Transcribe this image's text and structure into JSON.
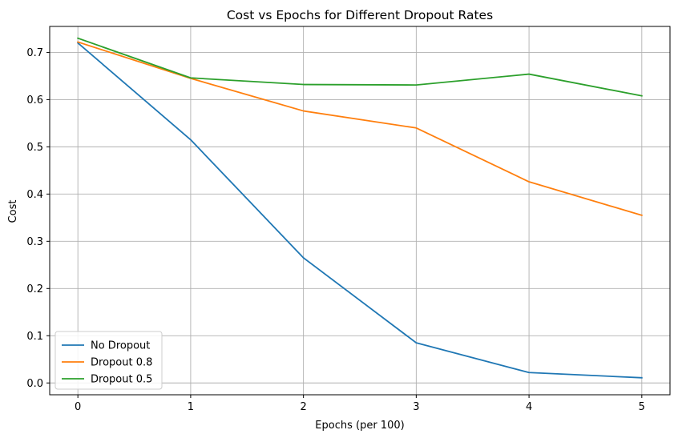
{
  "chart_data": {
    "type": "line",
    "title": "Cost vs Epochs for Different Dropout Rates",
    "xlabel": "Epochs (per 100)",
    "ylabel": "Cost",
    "x": [
      0,
      1,
      2,
      3,
      4,
      5
    ],
    "xlim": [
      -0.25,
      5.25
    ],
    "ylim": [
      -0.025,
      0.755
    ],
    "x_ticks": [
      0,
      1,
      2,
      3,
      4,
      5
    ],
    "y_ticks": [
      0.0,
      0.1,
      0.2,
      0.3,
      0.4,
      0.5,
      0.6,
      0.7
    ],
    "grid": true,
    "legend_position": "lower-left",
    "series": [
      {
        "name": "No Dropout",
        "color": "#1f77b4",
        "values": [
          0.72,
          0.515,
          0.265,
          0.085,
          0.022,
          0.011
        ]
      },
      {
        "name": "Dropout 0.8",
        "color": "#ff7f0e",
        "values": [
          0.722,
          0.645,
          0.576,
          0.54,
          0.426,
          0.355
        ]
      },
      {
        "name": "Dropout 0.5",
        "color": "#2ca02c",
        "values": [
          0.73,
          0.646,
          0.632,
          0.631,
          0.654,
          0.608
        ]
      }
    ]
  }
}
